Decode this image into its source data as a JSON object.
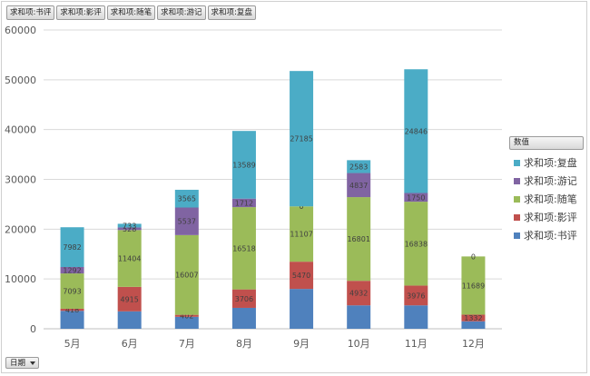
{
  "field_buttons": [
    "求和项:书评",
    "求和项:影评",
    "求和项:随笔",
    "求和项:游记",
    "求和项:复盘"
  ],
  "axis_field_button": "日期",
  "legend": {
    "title": "数值"
  },
  "chart_data": {
    "type": "bar",
    "stacked": true,
    "categories": [
      "5月",
      "6月",
      "7月",
      "8月",
      "9月",
      "10月",
      "11月",
      "12月"
    ],
    "ylim": [
      0,
      60000
    ],
    "yticks": [
      0,
      10000,
      20000,
      30000,
      40000,
      50000,
      60000
    ],
    "grid": true,
    "legend_position": "right",
    "series": [
      {
        "name": "求和项:书评",
        "color": "#4f81bd",
        "values": [
          3600,
          3500,
          2400,
          4200,
          8000,
          4700,
          4700,
          1500
        ],
        "labels": [
          "",
          "",
          "",
          "",
          "",
          "",
          "",
          ""
        ]
      },
      {
        "name": "求和项:影评",
        "color": "#c0504d",
        "values": [
          418,
          4915,
          402,
          3706,
          5470,
          4932,
          3976,
          1332
        ],
        "labels": [
          "418",
          "4915",
          "402",
          "3706",
          "5470",
          "4932",
          "3976",
          "1332"
        ]
      },
      {
        "name": "求和项:随笔",
        "color": "#9bbb59",
        "values": [
          7093,
          11404,
          16007,
          16518,
          11107,
          16801,
          16838,
          11689
        ],
        "labels": [
          "7093",
          "11404",
          "16007",
          "16518",
          "11107",
          "16801",
          "16838",
          "11689"
        ]
      },
      {
        "name": "求和项:游记",
        "color": "#8064a2",
        "values": [
          1292,
          528,
          5537,
          1712,
          0,
          4837,
          1750,
          0
        ],
        "labels": [
          "1292",
          "528",
          "5537",
          "1712",
          "0",
          "4837",
          "1750",
          "0"
        ]
      },
      {
        "name": "求和项:复盘",
        "color": "#4bacc6",
        "values": [
          7982,
          733,
          3565,
          13589,
          27185,
          2583,
          24846,
          0
        ],
        "labels": [
          "7982",
          "733",
          "3565",
          "13589",
          "27185",
          "2583",
          "24846",
          ""
        ]
      }
    ]
  }
}
